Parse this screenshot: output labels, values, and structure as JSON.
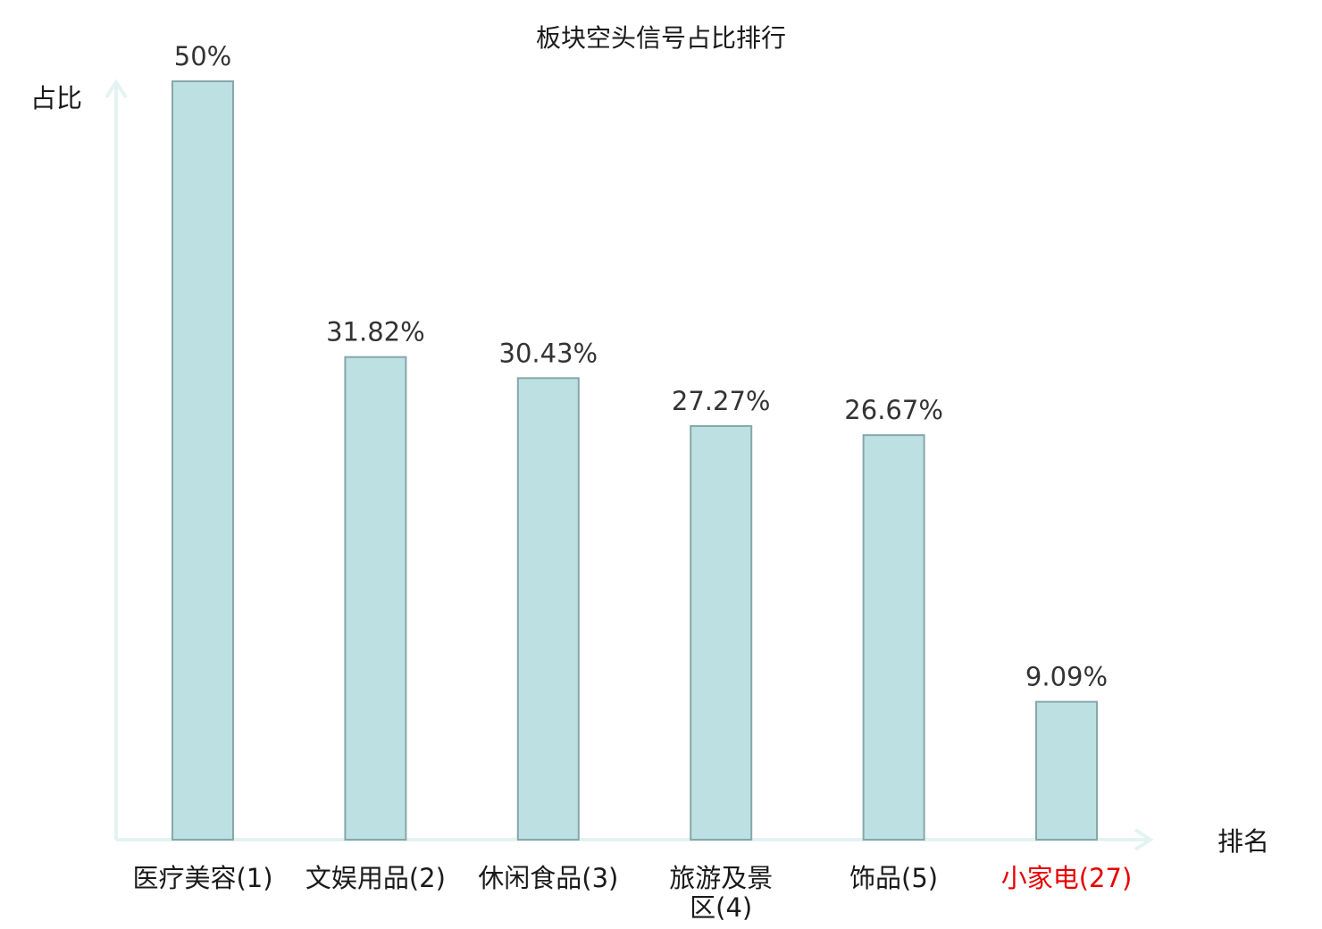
{
  "chart_data": {
    "type": "bar",
    "title": "板块空头信号占比排行",
    "ylabel": "占比",
    "xlabel": "排名",
    "ylim": [
      0,
      50
    ],
    "categories": [
      {
        "lines": [
          "医疗美容(1)"
        ],
        "highlight": false
      },
      {
        "lines": [
          "文娱用品(2)"
        ],
        "highlight": false
      },
      {
        "lines": [
          "休闲食品(3)"
        ],
        "highlight": false
      },
      {
        "lines": [
          "旅游及景",
          "区(4)"
        ],
        "highlight": false
      },
      {
        "lines": [
          "饰品(5)"
        ],
        "highlight": false
      },
      {
        "lines": [
          "小家电(27)"
        ],
        "highlight": true
      }
    ],
    "values": [
      50,
      31.82,
      30.43,
      27.27,
      26.67,
      9.09
    ],
    "value_labels": [
      "50%",
      "31.82%",
      "30.43%",
      "27.27%",
      "26.67%",
      "9.09%"
    ],
    "grid": false,
    "colors": {
      "bar_fill": "#bde0e2",
      "bar_stroke": "#86a7aa",
      "axis": "#e3f3f1",
      "highlight_text": "#e60000"
    }
  }
}
